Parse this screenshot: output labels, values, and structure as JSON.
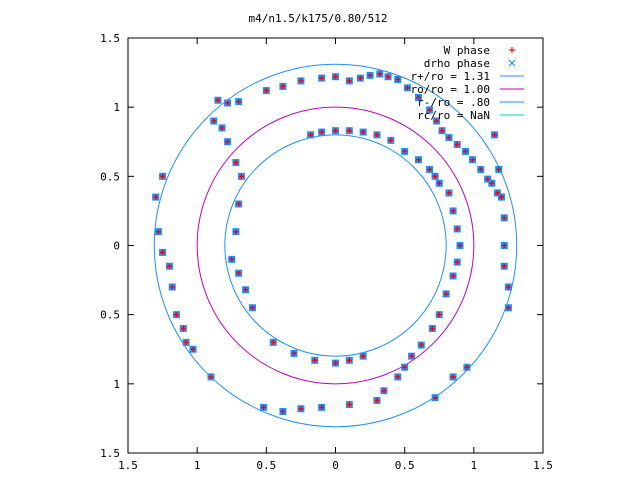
{
  "chart_data": {
    "type": "scatter",
    "title": "m4/n1.5/k175/0.80/512",
    "xlabel": "",
    "ylabel": "",
    "xlim": [
      -1.5,
      1.5
    ],
    "ylim": [
      -1.5,
      1.5
    ],
    "x_ticks": [
      -1.5,
      -1,
      -0.5,
      0,
      0.5,
      1,
      1.5
    ],
    "y_ticks": [
      -1.5,
      -1,
      -0.5,
      0,
      0.5,
      1,
      1.5
    ],
    "x_tick_labels": [
      "1.5",
      "1",
      "0.5",
      "0",
      "0.5",
      "1",
      "1.5"
    ],
    "y_tick_labels": [
      "1.5",
      "1",
      "0.5",
      "0",
      "0.5",
      "1",
      "1.5"
    ],
    "grid": false,
    "legend_position": "top-right",
    "legend": [
      {
        "label": "W phase",
        "marker": "+",
        "color": "#ff0000"
      },
      {
        "label": "drho phase",
        "marker": "x",
        "color": "#1e90ff"
      },
      {
        "label": "r+/ro = 1.31",
        "line": true,
        "color": "#1e90ff"
      },
      {
        "label": "ro/ro = 1.00",
        "line": true,
        "color": "#c000c0"
      },
      {
        "label": "r-/ro = .80",
        "line": true,
        "color": "#1e90ff"
      },
      {
        "label": "rc/ro = NaN",
        "line": true,
        "color": "#00cfcf"
      }
    ],
    "circles": [
      {
        "name": "r+/ro = 1.31",
        "r": 1.31,
        "color": "#1e90ff"
      },
      {
        "name": "ro/ro = 1.00",
        "r": 1.0,
        "color": "#c000c0"
      },
      {
        "name": "r-/ro = .80",
        "r": 0.8,
        "color": "#1e90ff"
      }
    ],
    "series": [
      {
        "name": "W phase",
        "marker_color": "#ff0000",
        "points": [
          [
            -0.85,
            1.05
          ],
          [
            -0.78,
            1.03
          ],
          [
            -0.7,
            1.04
          ],
          [
            -0.5,
            1.12
          ],
          [
            -0.38,
            1.15
          ],
          [
            -0.25,
            1.19
          ],
          [
            -0.1,
            1.21
          ],
          [
            0.0,
            1.22
          ],
          [
            0.1,
            1.19
          ],
          [
            0.18,
            1.21
          ],
          [
            0.25,
            1.23
          ],
          [
            0.32,
            1.24
          ],
          [
            0.38,
            1.22
          ],
          [
            0.45,
            1.2
          ],
          [
            0.52,
            1.14
          ],
          [
            0.6,
            1.07
          ],
          [
            0.68,
            0.98
          ],
          [
            0.73,
            0.9
          ],
          [
            0.77,
            0.83
          ],
          [
            0.82,
            0.78
          ],
          [
            0.88,
            0.73
          ],
          [
            0.94,
            0.68
          ],
          [
            0.99,
            0.62
          ],
          [
            1.05,
            0.55
          ],
          [
            1.1,
            0.48
          ],
          [
            1.13,
            0.45
          ],
          [
            1.17,
            0.38
          ],
          [
            1.2,
            0.35
          ],
          [
            -1.25,
            0.5
          ],
          [
            -1.3,
            0.35
          ],
          [
            -1.28,
            0.1
          ],
          [
            -1.25,
            -0.05
          ],
          [
            -1.2,
            -0.15
          ],
          [
            -1.18,
            -0.3
          ],
          [
            -1.15,
            -0.5
          ],
          [
            -1.1,
            -0.6
          ],
          [
            -1.08,
            -0.7
          ],
          [
            -1.03,
            -0.75
          ],
          [
            -0.9,
            -0.95
          ],
          [
            -0.52,
            -1.17
          ],
          [
            -0.38,
            -1.2
          ],
          [
            -0.25,
            -1.18
          ],
          [
            -0.1,
            -1.17
          ],
          [
            0.1,
            -1.15
          ],
          [
            0.3,
            -1.12
          ],
          [
            -0.88,
            0.9
          ],
          [
            -0.82,
            0.85
          ],
          [
            -0.78,
            0.75
          ],
          [
            -0.72,
            0.6
          ],
          [
            -0.68,
            0.5
          ],
          [
            -0.7,
            0.3
          ],
          [
            -0.72,
            0.1
          ],
          [
            -0.75,
            -0.1
          ],
          [
            -0.7,
            -0.2
          ],
          [
            -0.65,
            -0.32
          ],
          [
            -0.6,
            -0.45
          ],
          [
            -0.45,
            -0.7
          ],
          [
            -0.3,
            -0.78
          ],
          [
            -0.15,
            -0.83
          ],
          [
            0.0,
            -0.85
          ],
          [
            0.1,
            -0.83
          ],
          [
            0.2,
            -0.8
          ],
          [
            -0.18,
            0.8
          ],
          [
            -0.1,
            0.82
          ],
          [
            0.0,
            0.83
          ],
          [
            0.1,
            0.83
          ],
          [
            0.2,
            0.82
          ],
          [
            0.3,
            0.8
          ],
          [
            0.4,
            0.76
          ],
          [
            0.5,
            0.68
          ],
          [
            0.6,
            0.62
          ],
          [
            0.68,
            0.55
          ],
          [
            0.72,
            0.5
          ],
          [
            0.75,
            0.45
          ],
          [
            0.82,
            0.38
          ],
          [
            0.85,
            0.25
          ],
          [
            0.88,
            0.12
          ],
          [
            0.9,
            0.0
          ],
          [
            0.88,
            -0.12
          ],
          [
            0.85,
            -0.22
          ],
          [
            0.8,
            -0.35
          ],
          [
            0.75,
            -0.5
          ],
          [
            0.7,
            -0.6
          ],
          [
            0.62,
            -0.72
          ],
          [
            0.55,
            -0.8
          ],
          [
            0.5,
            -0.88
          ],
          [
            0.45,
            -0.95
          ],
          [
            0.35,
            -1.05
          ],
          [
            1.15,
            0.8
          ],
          [
            1.18,
            0.55
          ],
          [
            1.2,
            0.35
          ],
          [
            1.22,
            0.2
          ],
          [
            1.22,
            0.0
          ],
          [
            1.22,
            -0.15
          ],
          [
            1.25,
            -0.3
          ],
          [
            1.25,
            -0.45
          ],
          [
            0.95,
            -0.88
          ],
          [
            0.85,
            -0.95
          ],
          [
            0.72,
            -1.1
          ]
        ]
      },
      {
        "name": "drho phase",
        "marker_color": "#1e90ff",
        "points": [
          [
            -0.85,
            1.05
          ],
          [
            -0.78,
            1.03
          ],
          [
            -0.7,
            1.04
          ],
          [
            -0.5,
            1.12
          ],
          [
            -0.38,
            1.15
          ],
          [
            -0.25,
            1.19
          ],
          [
            -0.1,
            1.21
          ],
          [
            0.0,
            1.22
          ],
          [
            0.1,
            1.19
          ],
          [
            0.18,
            1.21
          ],
          [
            0.25,
            1.23
          ],
          [
            0.32,
            1.24
          ],
          [
            0.38,
            1.22
          ],
          [
            0.45,
            1.2
          ],
          [
            0.52,
            1.14
          ],
          [
            0.6,
            1.07
          ],
          [
            0.68,
            0.98
          ],
          [
            0.73,
            0.9
          ],
          [
            0.77,
            0.83
          ],
          [
            0.82,
            0.78
          ],
          [
            0.88,
            0.73
          ],
          [
            0.94,
            0.68
          ],
          [
            0.99,
            0.62
          ],
          [
            1.05,
            0.55
          ],
          [
            1.1,
            0.48
          ],
          [
            1.13,
            0.45
          ],
          [
            1.17,
            0.38
          ],
          [
            1.2,
            0.35
          ],
          [
            -1.25,
            0.5
          ],
          [
            -1.3,
            0.35
          ],
          [
            -1.28,
            0.1
          ],
          [
            -1.25,
            -0.05
          ],
          [
            -1.2,
            -0.15
          ],
          [
            -1.18,
            -0.3
          ],
          [
            -1.15,
            -0.5
          ],
          [
            -1.1,
            -0.6
          ],
          [
            -1.08,
            -0.7
          ],
          [
            -1.03,
            -0.75
          ],
          [
            -0.9,
            -0.95
          ],
          [
            -0.52,
            -1.17
          ],
          [
            -0.38,
            -1.2
          ],
          [
            -0.25,
            -1.18
          ],
          [
            -0.1,
            -1.17
          ],
          [
            0.1,
            -1.15
          ],
          [
            0.3,
            -1.12
          ],
          [
            -0.88,
            0.9
          ],
          [
            -0.82,
            0.85
          ],
          [
            -0.78,
            0.75
          ],
          [
            -0.72,
            0.6
          ],
          [
            -0.68,
            0.5
          ],
          [
            -0.7,
            0.3
          ],
          [
            -0.72,
            0.1
          ],
          [
            -0.75,
            -0.1
          ],
          [
            -0.7,
            -0.2
          ],
          [
            -0.65,
            -0.32
          ],
          [
            -0.6,
            -0.45
          ],
          [
            -0.45,
            -0.7
          ],
          [
            -0.3,
            -0.78
          ],
          [
            -0.15,
            -0.83
          ],
          [
            0.0,
            -0.85
          ],
          [
            0.1,
            -0.83
          ],
          [
            0.2,
            -0.8
          ],
          [
            -0.18,
            0.8
          ],
          [
            -0.1,
            0.82
          ],
          [
            0.0,
            0.83
          ],
          [
            0.1,
            0.83
          ],
          [
            0.2,
            0.82
          ],
          [
            0.3,
            0.8
          ],
          [
            0.4,
            0.76
          ],
          [
            0.5,
            0.68
          ],
          [
            0.6,
            0.62
          ],
          [
            0.68,
            0.55
          ],
          [
            0.72,
            0.5
          ],
          [
            0.75,
            0.45
          ],
          [
            0.82,
            0.38
          ],
          [
            0.85,
            0.25
          ],
          [
            0.88,
            0.12
          ],
          [
            0.9,
            0.0
          ],
          [
            0.88,
            -0.12
          ],
          [
            0.85,
            -0.22
          ],
          [
            0.8,
            -0.35
          ],
          [
            0.75,
            -0.5
          ],
          [
            0.7,
            -0.6
          ],
          [
            0.62,
            -0.72
          ],
          [
            0.55,
            -0.8
          ],
          [
            0.5,
            -0.88
          ],
          [
            0.45,
            -0.95
          ],
          [
            0.35,
            -1.05
          ],
          [
            1.15,
            0.8
          ],
          [
            1.18,
            0.55
          ],
          [
            1.2,
            0.35
          ],
          [
            1.22,
            0.2
          ],
          [
            1.22,
            0.0
          ],
          [
            1.22,
            -0.15
          ],
          [
            1.25,
            -0.3
          ],
          [
            1.25,
            -0.45
          ],
          [
            0.95,
            -0.88
          ],
          [
            0.85,
            -0.95
          ],
          [
            0.72,
            -1.1
          ]
        ]
      }
    ]
  }
}
